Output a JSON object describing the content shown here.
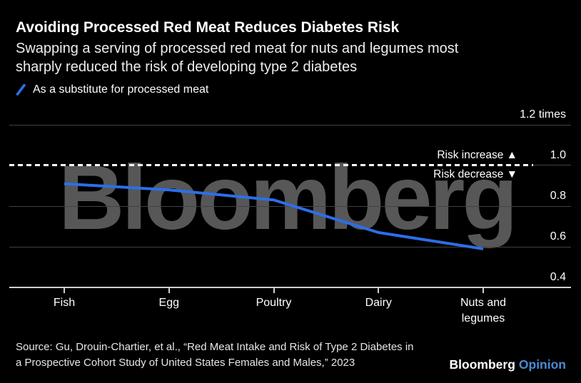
{
  "header": {
    "title": "Avoiding Processed Red Meat Reduces Diabetes Risk",
    "subtitle": "Swapping a serving of processed red meat for nuts and legumes most sharply reduced the risk of developing type 2 diabetes"
  },
  "legend": {
    "key_icon": "blue-slash-icon",
    "label": "As a substitute for processed meat"
  },
  "watermark": "Bloomberg",
  "annotations": {
    "risk_increase": "Risk increase ▲",
    "risk_decrease": "Risk decrease ▼"
  },
  "chart_data": {
    "type": "line",
    "categories": [
      "Fish",
      "Egg",
      "Poultry",
      "Dairy",
      "Nuts and legumes"
    ],
    "series": [
      {
        "name": "As a substitute for processed meat",
        "values": [
          0.91,
          0.88,
          0.83,
          0.67,
          0.59
        ]
      }
    ],
    "baseline": 1.0,
    "y_ticks": [
      {
        "value": 1.2,
        "label": "1.2 times"
      },
      {
        "value": 1.0,
        "label": "1.0"
      },
      {
        "value": 0.8,
        "label": "0.8"
      },
      {
        "value": 0.6,
        "label": "0.6"
      },
      {
        "value": 0.4,
        "label": "0.4"
      }
    ],
    "ylim": [
      0.4,
      1.2
    ],
    "grid": true,
    "legend_position": "top-left",
    "ylabel": "",
    "xlabel": ""
  },
  "colors": {
    "background": "#000000",
    "line": "#2d6ee8",
    "opinion_blue": "#4a8bd4",
    "grid": "#424242",
    "axis": "#cfcfcf",
    "dashed_baseline": "#ffffff",
    "watermark": "#575757"
  },
  "footer": {
    "source_lines": [
      "Source: Gu, Drouin-Chartier, et al., “Red Meat Intake and Risk of Type 2 Diabetes in",
      "a Prospective Cohort Study of United States Females and Males,” 2023"
    ],
    "brand": "Bloomberg",
    "brand_suffix": "Opinion"
  }
}
